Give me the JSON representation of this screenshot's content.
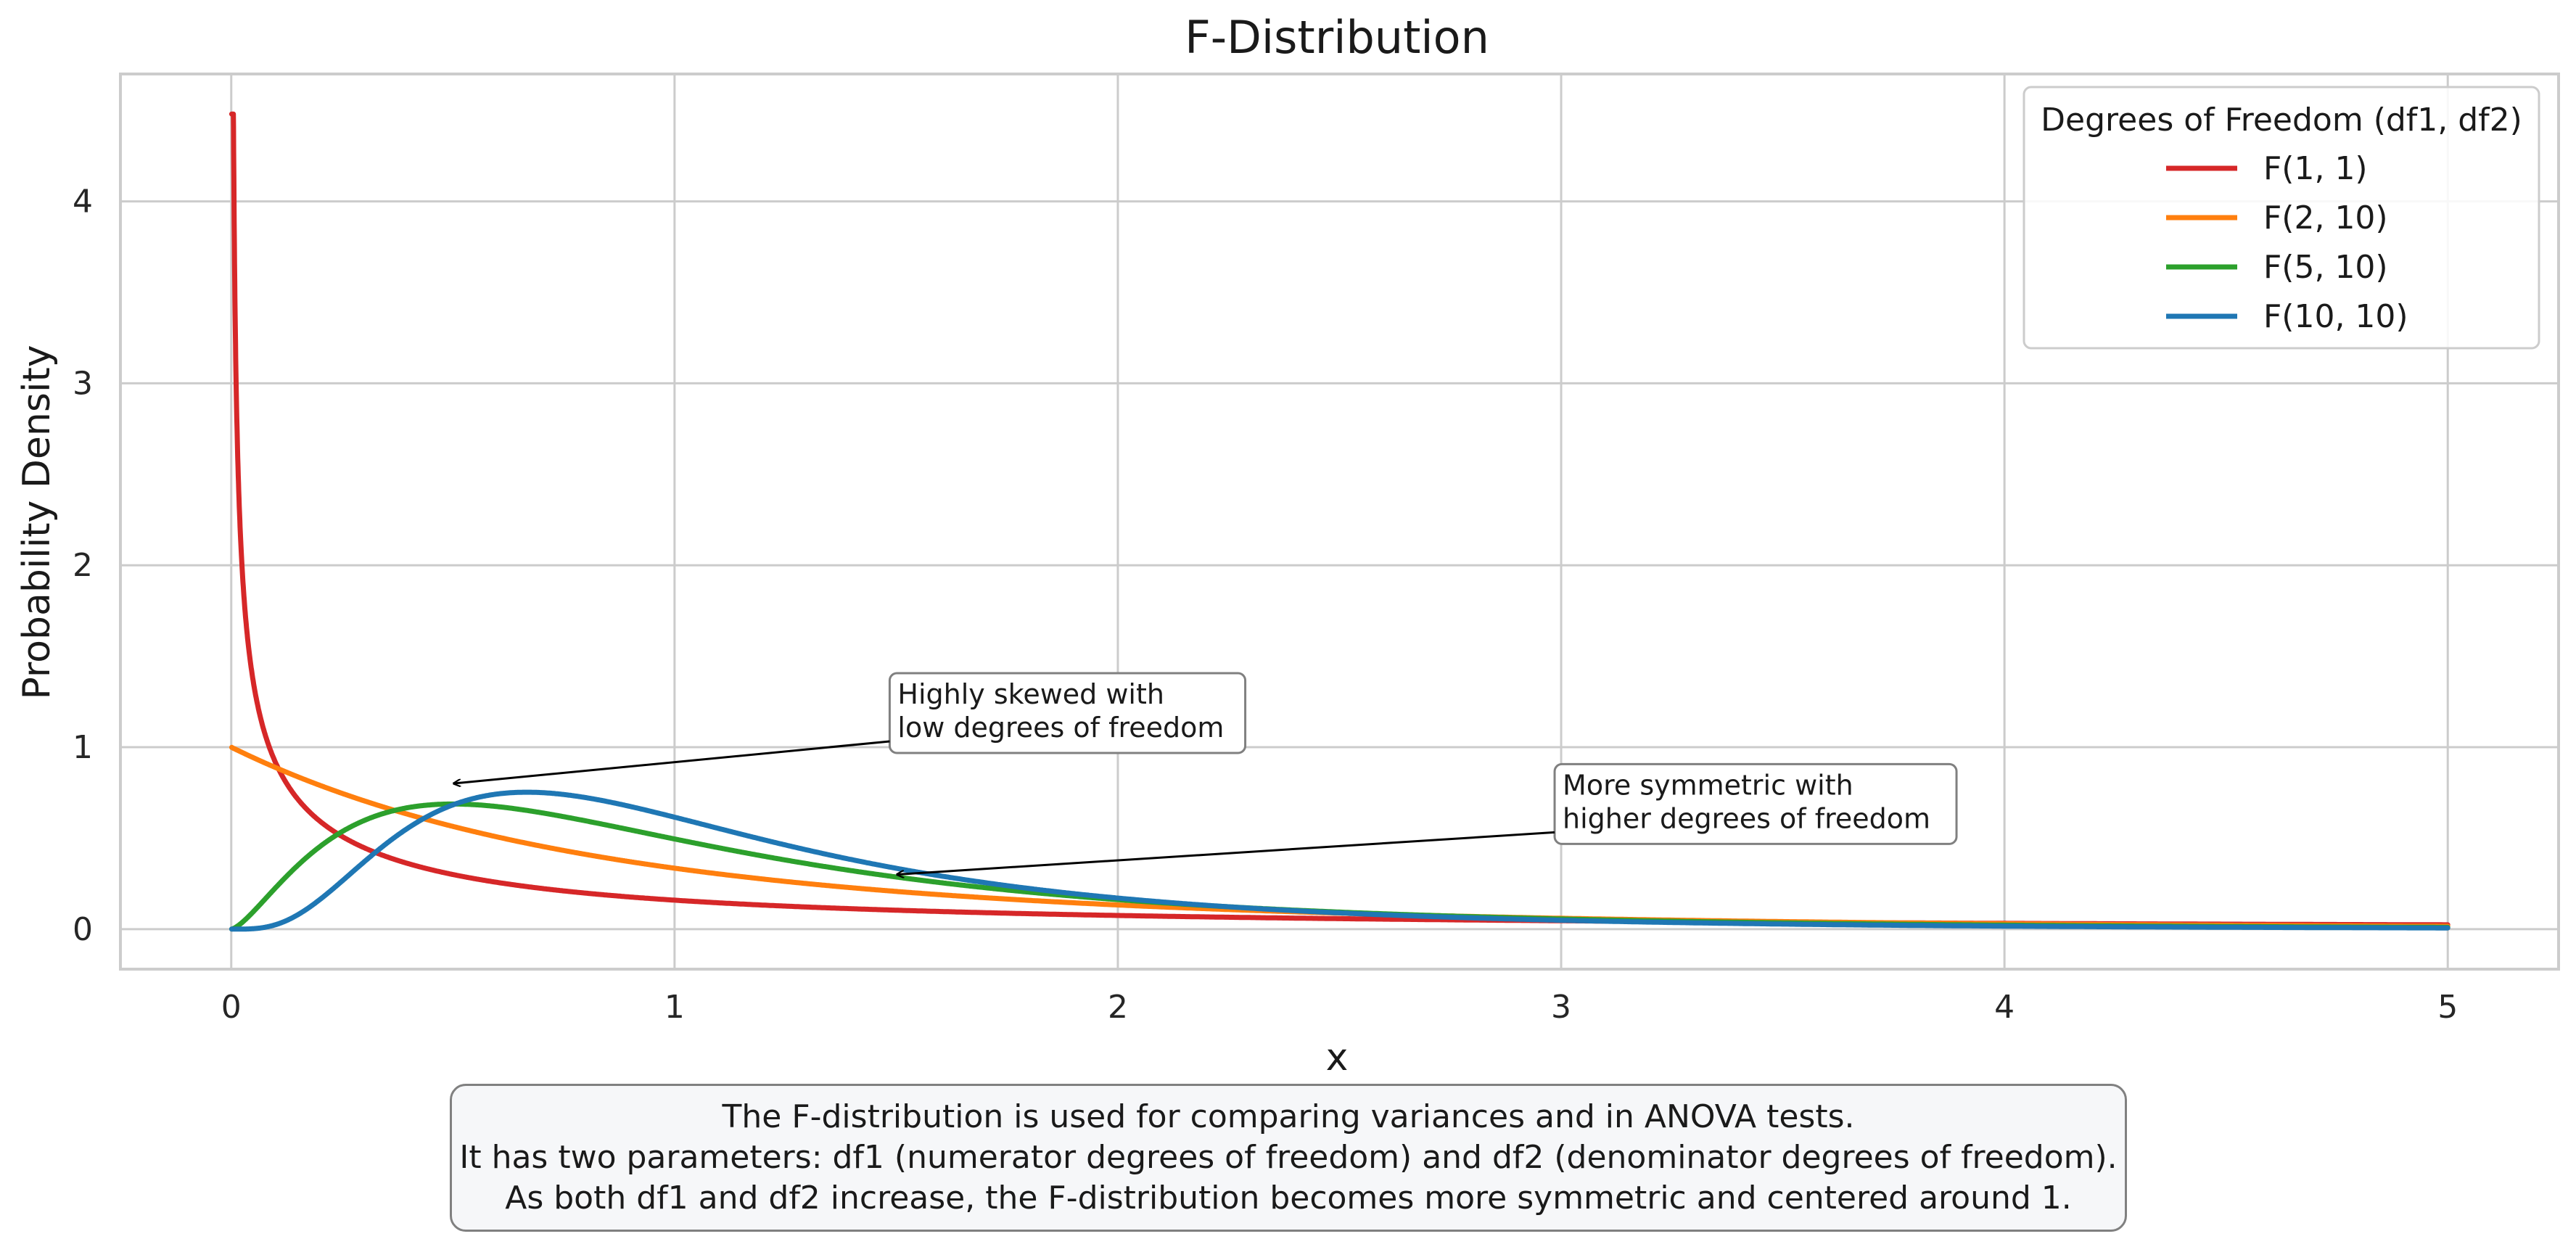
{
  "chart_data": {
    "type": "line",
    "title": "F-Distribution",
    "xlabel": "x",
    "ylabel": "Probability Density",
    "xlim": [
      -0.25,
      5.25
    ],
    "ylim": [
      -0.22,
      4.7
    ],
    "xticks": [
      0,
      1,
      2,
      3,
      4,
      5
    ],
    "yticks": [
      0,
      1,
      2,
      3,
      4
    ],
    "grid": true,
    "legend": {
      "title": "Degrees of Freedom (df1, df2)",
      "placement": "top-right"
    },
    "x_range": [
      0.001,
      5
    ],
    "series": [
      {
        "name": "F(1, 1)",
        "df1": 1,
        "df2": 1,
        "color": "#d62728",
        "peak": 4.48
      },
      {
        "name": "F(2, 10)",
        "df1": 2,
        "df2": 10,
        "color": "#ff7f0e"
      },
      {
        "name": "F(5, 10)",
        "df1": 5,
        "df2": 10,
        "color": "#2ca02c"
      },
      {
        "name": "F(10, 10)",
        "df1": 10,
        "df2": 10,
        "color": "#1f77b4"
      }
    ],
    "annotations": [
      {
        "lines": [
          "Highly skewed with",
          "low degrees of freedom"
        ],
        "arrow_target": {
          "x": 0.5,
          "y": 0.8
        },
        "text_at": {
          "x": 1.5,
          "y": 1.0
        }
      },
      {
        "lines": [
          "More symmetric with",
          "higher degrees of freedom"
        ],
        "arrow_target": {
          "x": 1.5,
          "y": 0.3
        },
        "text_at": {
          "x": 3.0,
          "y": 0.5
        }
      }
    ]
  },
  "caption": {
    "lines": [
      "The F-distribution is used for comparing variances and in ANOVA tests.",
      "It has two parameters: df1 (numerator degrees of freedom) and df2 (denominator degrees of freedom).",
      "As both df1 and df2 increase, the F-distribution becomes more symmetric and centered around 1."
    ]
  }
}
